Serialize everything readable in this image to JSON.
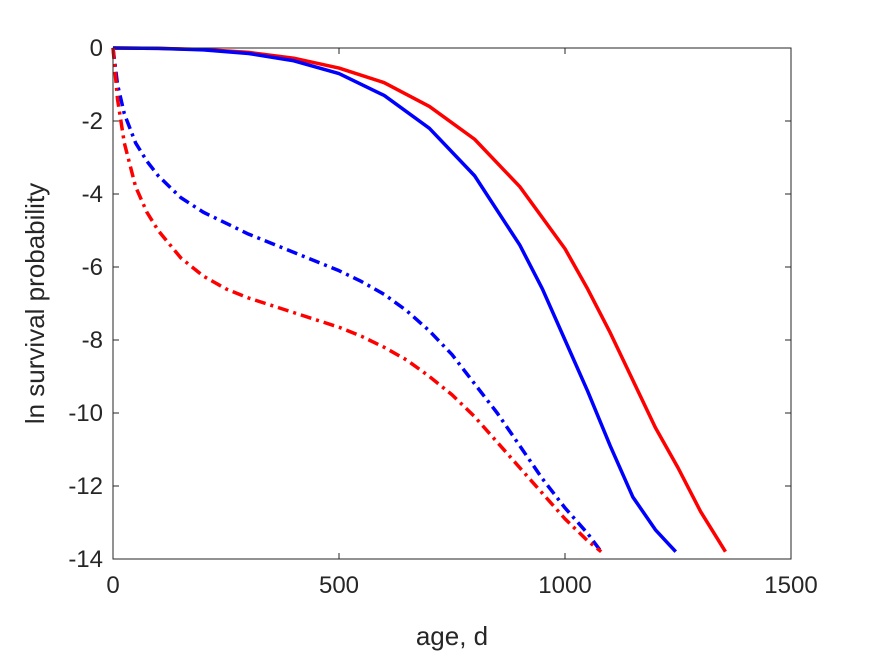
{
  "chart_data": {
    "type": "line",
    "title": "",
    "xlabel": "age, d",
    "ylabel": "ln survival probability",
    "xlim": [
      0,
      1500
    ],
    "ylim": [
      -14,
      0
    ],
    "xticks": [
      0,
      500,
      1000,
      1500
    ],
    "yticks": [
      0,
      -2,
      -4,
      -6,
      -8,
      -10,
      -12,
      -14
    ],
    "xtick_labels": [
      "0",
      "500",
      "1000",
      "1500"
    ],
    "ytick_labels": [
      "0",
      "-2",
      "-4",
      "-6",
      "-8",
      "-10",
      "-12",
      "-14"
    ],
    "grid": false,
    "legend": "none",
    "series": [
      {
        "color": "#ff0000",
        "style": "solid",
        "x": [
          0,
          100,
          200,
          300,
          400,
          500,
          600,
          700,
          800,
          900,
          1000,
          1050,
          1100,
          1150,
          1200,
          1250,
          1300,
          1330,
          1355
        ],
        "y": [
          0,
          -0.01,
          -0.04,
          -0.12,
          -0.28,
          -0.55,
          -0.95,
          -1.6,
          -2.5,
          -3.8,
          -5.5,
          -6.6,
          -7.8,
          -9.1,
          -10.4,
          -11.5,
          -12.7,
          -13.3,
          -13.8
        ]
      },
      {
        "color": "#0000ff",
        "style": "solid",
        "x": [
          0,
          100,
          200,
          300,
          400,
          500,
          600,
          700,
          800,
          900,
          950,
          1000,
          1050,
          1100,
          1150,
          1200,
          1230,
          1245
        ],
        "y": [
          0,
          -0.01,
          -0.05,
          -0.15,
          -0.35,
          -0.7,
          -1.3,
          -2.2,
          -3.5,
          -5.4,
          -6.6,
          -8.0,
          -9.4,
          -10.9,
          -12.3,
          -13.2,
          -13.6,
          -13.8
        ]
      },
      {
        "color": "#0000ff",
        "style": "dashdot",
        "x": [
          0,
          10,
          25,
          50,
          75,
          100,
          150,
          200,
          250,
          300,
          350,
          400,
          450,
          500,
          550,
          600,
          650,
          700,
          750,
          800,
          850,
          900,
          950,
          1000,
          1050,
          1080
        ],
        "y": [
          0,
          -1.0,
          -1.8,
          -2.6,
          -3.1,
          -3.5,
          -4.1,
          -4.5,
          -4.8,
          -5.1,
          -5.35,
          -5.6,
          -5.85,
          -6.1,
          -6.4,
          -6.75,
          -7.2,
          -7.75,
          -8.4,
          -9.2,
          -10.0,
          -10.9,
          -11.8,
          -12.6,
          -13.3,
          -13.8
        ]
      },
      {
        "color": "#ff0000",
        "style": "dashdot",
        "x": [
          0,
          10,
          25,
          50,
          75,
          100,
          150,
          200,
          250,
          300,
          350,
          400,
          450,
          500,
          550,
          600,
          650,
          700,
          750,
          800,
          850,
          900,
          950,
          1000,
          1050,
          1080
        ],
        "y": [
          0,
          -1.4,
          -2.6,
          -3.8,
          -4.5,
          -5.0,
          -5.75,
          -6.25,
          -6.6,
          -6.85,
          -7.05,
          -7.25,
          -7.45,
          -7.65,
          -7.9,
          -8.2,
          -8.55,
          -9.0,
          -9.5,
          -10.1,
          -10.8,
          -11.5,
          -12.2,
          -12.9,
          -13.5,
          -13.8
        ]
      }
    ]
  }
}
